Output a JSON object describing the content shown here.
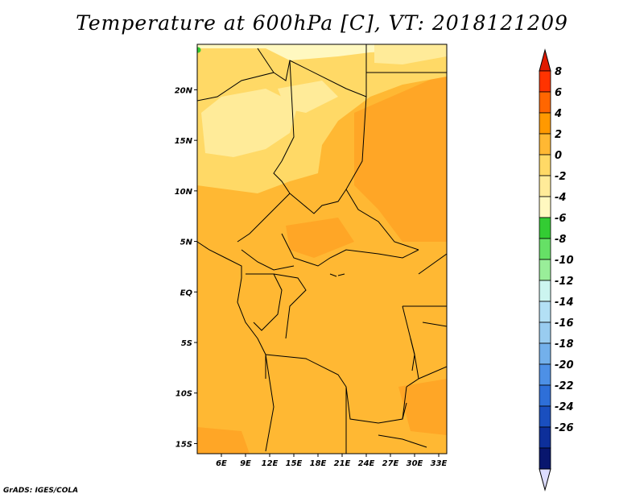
{
  "title": "Temperature at 600hPa [C], VT: 2018121209",
  "footer": "GrADS: IGES/COLA",
  "map": {
    "lat_range": [
      -16,
      24.5
    ],
    "lon_range": [
      3,
      34
    ],
    "lat_ticks": [
      "20N",
      "15N",
      "10N",
      "5N",
      "EQ",
      "5S",
      "10S",
      "15S"
    ],
    "lat_tick_values": [
      20,
      15,
      10,
      5,
      0,
      -5,
      -10,
      -15
    ],
    "lon_ticks": [
      "6E",
      "9E",
      "12E",
      "15E",
      "18E",
      "21E",
      "24E",
      "27E",
      "30E",
      "33E"
    ],
    "lon_tick_values": [
      6,
      9,
      12,
      15,
      18,
      21,
      24,
      27,
      30,
      33
    ]
  },
  "colorbar": {
    "labels": [
      "8",
      "6",
      "4",
      "2",
      "0",
      "-2",
      "-4",
      "-6",
      "-8",
      "-10",
      "-12",
      "-14",
      "-16",
      "-18",
      "-20",
      "-22",
      "-24",
      "-26"
    ],
    "colors": [
      "#ff3300",
      "#ff6600",
      "#ff9900",
      "#ffb833",
      "#ffd966",
      "#ffeb99",
      "#fff8c0",
      "#33cc33",
      "#66e066",
      "#99ee99",
      "#ccf5f0",
      "#b3e0f5",
      "#99ccf0",
      "#73b0eb",
      "#4d90e6",
      "#2e6fd8",
      "#1a4fbf",
      "#0d2f9a",
      "#08166e"
    ],
    "top_arrow_color": "#e01a00",
    "bottom_arrow_color": "#ddddff"
  }
}
